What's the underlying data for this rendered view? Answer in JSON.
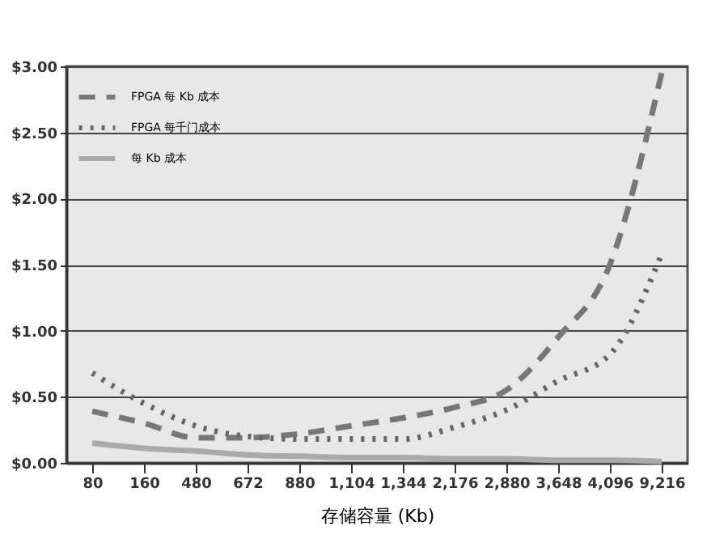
{
  "chart_data": {
    "type": "line",
    "xlabel": "存储容量 (Kb)",
    "categories": [
      "80",
      "160",
      "480",
      "672",
      "880",
      "1,104",
      "1,344",
      "2,176",
      "2,880",
      "3,648",
      "4,096",
      "9,216"
    ],
    "series": [
      {
        "name": "FPGA 每 Kb 成本",
        "color": "#777777",
        "line_style": "dashed",
        "values": [
          0.39,
          0.3,
          0.19,
          0.19,
          0.22,
          0.28,
          0.34,
          0.42,
          0.55,
          0.95,
          1.5,
          2.95
        ]
      },
      {
        "name": "FPGA 每千门成本",
        "color": "#666666",
        "line_style": "dotted",
        "values": [
          0.68,
          0.45,
          0.28,
          0.2,
          0.18,
          0.18,
          0.18,
          0.27,
          0.4,
          0.62,
          0.82,
          1.58
        ]
      },
      {
        "name": "每 Kb 成本",
        "color": "#aaaaaa",
        "line_style": "solid",
        "values": [
          0.15,
          0.11,
          0.09,
          0.06,
          0.05,
          0.04,
          0.04,
          0.03,
          0.03,
          0.02,
          0.02,
          0.01
        ]
      }
    ],
    "ylim": [
      0,
      3
    ],
    "yticks": [
      {
        "value": 0,
        "label": "$0.00"
      },
      {
        "value": 0.5,
        "label": "$0.50"
      },
      {
        "value": 1,
        "label": "$1.00"
      },
      {
        "value": 1.5,
        "label": "$1.50"
      },
      {
        "value": 2,
        "label": "$2.00"
      },
      {
        "value": 2.5,
        "label": "$2.50"
      },
      {
        "value": 3,
        "label": "$3.00"
      }
    ],
    "grid": "y",
    "legend": "top left",
    "marker": "none"
  }
}
